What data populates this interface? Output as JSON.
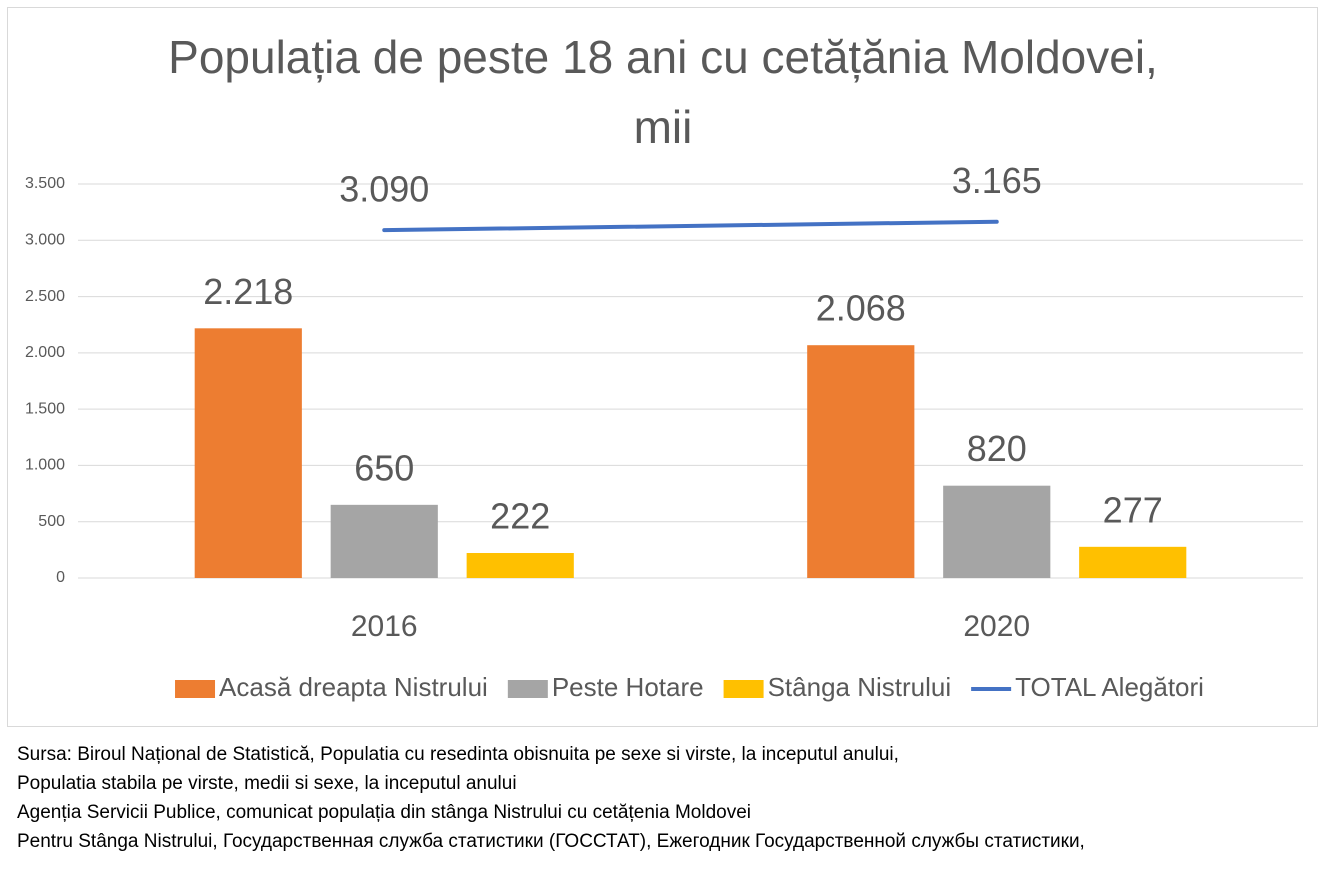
{
  "chart_data": {
    "type": "bar",
    "title": "Populația de peste 18 ani cu cetățănia Moldovei, mii",
    "categories": [
      "2016",
      "2020"
    ],
    "series": [
      {
        "name": "Acasă dreapta Nistrului",
        "color": "#ED7D31",
        "values": [
          2218,
          2068
        ],
        "value_labels": [
          "2.218",
          "2.068"
        ]
      },
      {
        "name": "Peste Hotare",
        "color": "#A5A5A5",
        "values": [
          650,
          820
        ],
        "value_labels": [
          "650",
          "820"
        ]
      },
      {
        "name": "Stânga Nistrului",
        "color": "#FFC000",
        "values": [
          222,
          277
        ],
        "value_labels": [
          "222",
          "277"
        ]
      },
      {
        "name": "TOTAL Alegători",
        "color": "#4472C4",
        "type": "line",
        "values": [
          3090,
          3165
        ],
        "value_labels": [
          "3.090",
          "3.165"
        ]
      }
    ],
    "ylim": [
      0,
      3500
    ],
    "yticks": [
      0,
      500,
      {
        "value": 1000,
        "label": "1.000"
      },
      {
        "value": 1500,
        "label": "1.500"
      },
      {
        "value": 2000,
        "label": "2.000"
      },
      {
        "value": 2500,
        "label": "2.500"
      },
      {
        "value": 3000,
        "label": "3.000"
      },
      {
        "value": 3500,
        "label": "3.500"
      }
    ],
    "grid": true,
    "legend": "bottom"
  },
  "notes": [
    "Sursa: Biroul Național de Statistică, Populatia cu resedinta obisnuita pe sexe si virste, la inceputul anului,",
    "Populatia stabila pe virste, medii si sexe, la inceputul anului",
    "Agenția Servicii Publice, comunicat populația din stânga Nistrului cu cetățenia Moldovei",
    "Pentru Stânga Nistrului, Государственная служба статистики (ГОССТАТ), Ежегодник Государственной службы статистики,"
  ]
}
